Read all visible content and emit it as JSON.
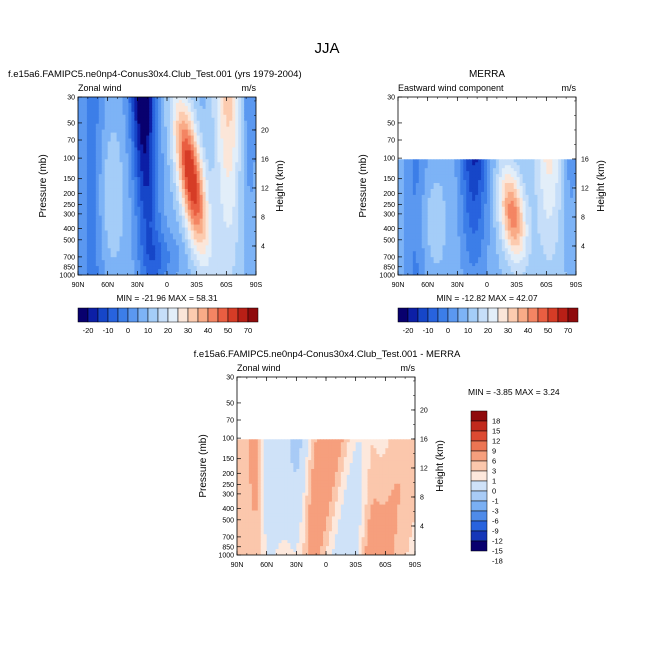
{
  "page": {
    "title": "JJA"
  },
  "palettes": {
    "full": [
      "#08006e",
      "#0c1fa6",
      "#1646c8",
      "#2863de",
      "#3c7ee8",
      "#5b98f0",
      "#7db3f6",
      "#a4cdf8",
      "#c6def9",
      "#e2eef9",
      "#fbe6d9",
      "#fccbaf",
      "#f9ab87",
      "#f48563",
      "#e95e41",
      "#d63c26",
      "#b81f16",
      "#8f0a0c"
    ],
    "diff": [
      "#08006e",
      "#1537b8",
      "#2863de",
      "#4f8be9",
      "#7aaff3",
      "#a8cbf6",
      "#cfe2f8",
      "#fde8dc",
      "#fbc7ac",
      "#f69f7d",
      "#ec7553",
      "#dc4a32",
      "#c12a1d",
      "#8f0a0c"
    ]
  },
  "chart_data": [
    {
      "type": "heatmap",
      "title": "f.e15a6.FAMIPC5.ne0np4-Conus30x4.Club_Test.001 (yrs 1979-2004)",
      "subtitle_left": "Zonal wind",
      "subtitle_right": "m/s",
      "xlabel": "",
      "ylabel": "Pressure (mb)",
      "ylabel_right": "Height (km)",
      "x_ticks": [
        "90N",
        "60N",
        "30N",
        "0",
        "30S",
        "60S",
        "90S"
      ],
      "y_ticks": [
        "30",
        "50",
        "70",
        "100",
        "150",
        "200",
        "250",
        "300",
        "400",
        "500",
        "700",
        "850",
        "1000"
      ],
      "height_ticks": [
        "4",
        "8",
        "12",
        "16",
        "20"
      ],
      "scale": "log",
      "ylim": [
        1000,
        30
      ],
      "min": "-21.96",
      "max": "58.31",
      "stats": "MIN = -21.96   MAX = 58.31",
      "data_top_mb": 30
    },
    {
      "type": "heatmap",
      "title": "MERRA",
      "subtitle_left": "Eastward wind component",
      "subtitle_right": "m/s",
      "xlabel": "",
      "ylabel": "Pressure (mb)",
      "ylabel_right": "Height (km)",
      "x_ticks": [
        "90N",
        "60N",
        "30N",
        "0",
        "30S",
        "60S",
        "90S"
      ],
      "y_ticks": [
        "30",
        "50",
        "70",
        "100",
        "150",
        "200",
        "250",
        "300",
        "400",
        "500",
        "700",
        "850",
        "1000"
      ],
      "height_ticks": [
        "4",
        "8",
        "12",
        "16"
      ],
      "scale": "log",
      "ylim": [
        1000,
        30
      ],
      "min": "-12.82",
      "max": "42.07",
      "stats": "MIN = -12.82   MAX = 42.07",
      "data_top_mb": 100
    },
    {
      "type": "heatmap",
      "title": "f.e15a6.FAMIPC5.ne0np4-Conus30x4.Club_Test.001 - MERRA",
      "subtitle_left": "Zonal wind",
      "subtitle_right": "m/s",
      "xlabel": "",
      "ylabel": "Pressure (mb)",
      "ylabel_right": "Height (km)",
      "x_ticks": [
        "90N",
        "60N",
        "30N",
        "0",
        "30S",
        "60S",
        "90S"
      ],
      "y_ticks": [
        "30",
        "50",
        "70",
        "100",
        "150",
        "200",
        "250",
        "300",
        "400",
        "500",
        "700",
        "850",
        "1000"
      ],
      "height_ticks": [
        "4",
        "8",
        "12",
        "16",
        "20"
      ],
      "scale": "log",
      "ylim": [
        1000,
        30
      ],
      "min": "-3.85",
      "max": "3.24",
      "stats": "MIN = -3.85   MAX =   3.24",
      "data_top_mb": 100
    }
  ],
  "colorbars": {
    "top": {
      "labels": [
        "-20",
        "-10",
        "0",
        "10",
        "20",
        "30",
        "40",
        "50",
        "70"
      ]
    },
    "diff": {
      "labels": [
        "18",
        "15",
        "12",
        "9",
        "6",
        "3",
        "1",
        "0",
        "-1",
        "-3",
        "-6",
        "-9",
        "-12",
        "-15",
        "-18"
      ]
    }
  }
}
